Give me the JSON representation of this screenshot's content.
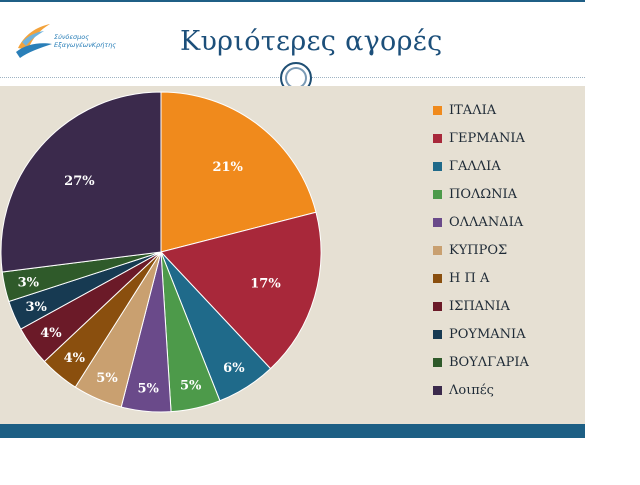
{
  "logo": {
    "line1": "Σύνδεσμος",
    "line2": "ΕξαγωγέωνΚρήτης"
  },
  "title": "Κυριότερες αγορές",
  "chart_data": {
    "type": "pie",
    "title": "Κυριότερες αγορές",
    "legend_position": "right",
    "categories": [
      "ΙΤΑΛΙΑ",
      "ΓΕΡΜΑΝΙΑ",
      "ΓΑΛΛΙΑ",
      "ΠΟΛΩΝΙΑ",
      "ΟΛΛΑΝΔΙΑ",
      "ΚΥΠΡΟΣ",
      "Η Π Α",
      "ΙΣΠΑΝΙΑ",
      "ΡΟΥΜΑΝΙΑ",
      "ΒΟΥΛΓΑΡΙΑ",
      "Λοιπές"
    ],
    "values": [
      21,
      17,
      6,
      5,
      5,
      5,
      4,
      4,
      3,
      3,
      27
    ],
    "labels": [
      "21%",
      "17%",
      "6%",
      "5%",
      "5%",
      "5%",
      "4%",
      "4%",
      "3%",
      "3%",
      "27%"
    ],
    "colors": [
      "#f08a1c",
      "#a8283a",
      "#1f6a8a",
      "#4d9a4a",
      "#6a4a8a",
      "#c9a070",
      "#8a4f0e",
      "#6b1a28",
      "#173a52",
      "#2f5a2a",
      "#3b2a4c"
    ]
  }
}
